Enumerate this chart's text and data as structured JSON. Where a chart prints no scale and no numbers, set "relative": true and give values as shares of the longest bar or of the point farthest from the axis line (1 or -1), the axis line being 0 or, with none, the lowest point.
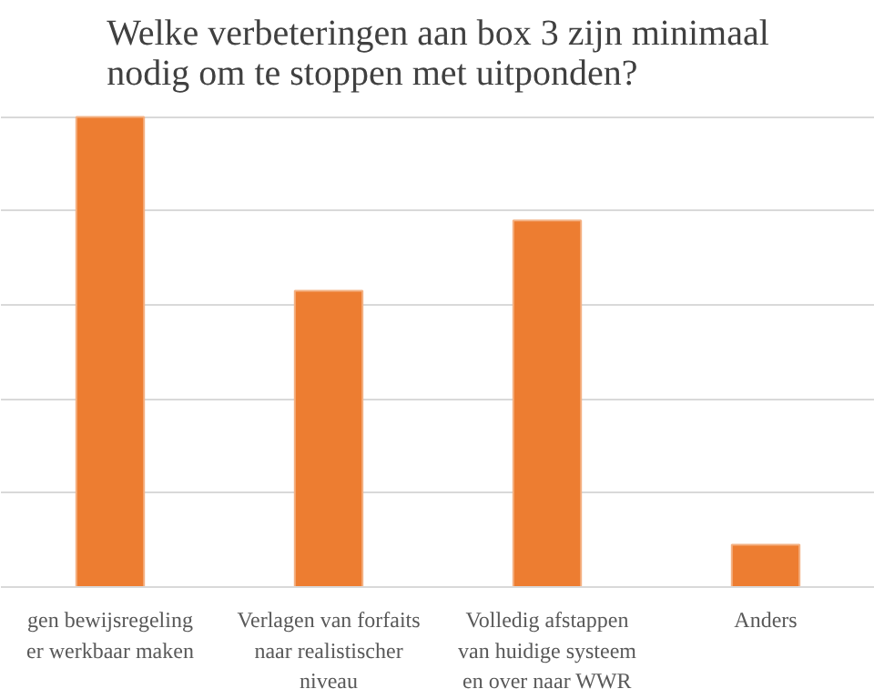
{
  "chart_data": {
    "type": "bar",
    "title": "Welke verbeteringen aan box 3 zijn minimaal\nnodig om te stoppen met uitponden?",
    "categories": [
      "gen bewijsregeling\ner werkbaar maken",
      "Verlagen van forfaits\nnaar realistischer\nniveau",
      "Volledig afstappen\nvan huidige systeem\nen over naar WWR",
      "Anders"
    ],
    "values": [
      1,
      0.63,
      0.78,
      0.09
    ],
    "color": "#ed7d31",
    "relative": true,
    "grid": "y"
  }
}
